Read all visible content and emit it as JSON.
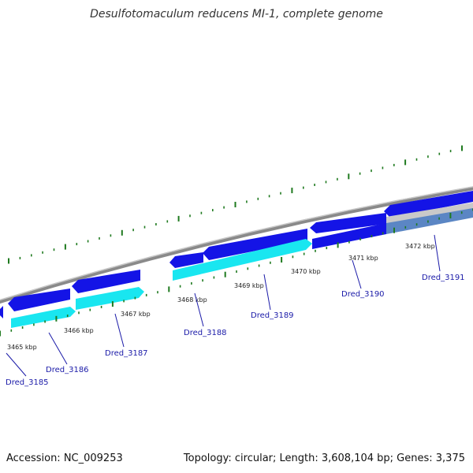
{
  "header": {
    "title": "Desulfotomaculum reducens MI-1, complete genome"
  },
  "footer": {
    "accession": "Accession: NC_009253",
    "summary": "Topology: circular; Length: 3,608,104 bp; Genes: 3,375"
  },
  "map": {
    "kbp_labels": [
      "3465 kbp",
      "3466 kbp",
      "3467 kbp",
      "3468 kbp",
      "3469 kbp",
      "3470 kbp",
      "3471 kbp",
      "3472 kbp"
    ],
    "gene_labels": [
      "Dred_3185",
      "Dred_3186",
      "Dred_3187",
      "Dred_3188",
      "Dred_3189",
      "Dred_3190",
      "Dred_3191"
    ]
  },
  "colors": {
    "backbone": "#8a8a8a",
    "forward_cds": "#1414e6",
    "reverse_cds": "#19e6f0",
    "ticks": "#1f7a1f",
    "label_link": "#1a1aa8"
  }
}
